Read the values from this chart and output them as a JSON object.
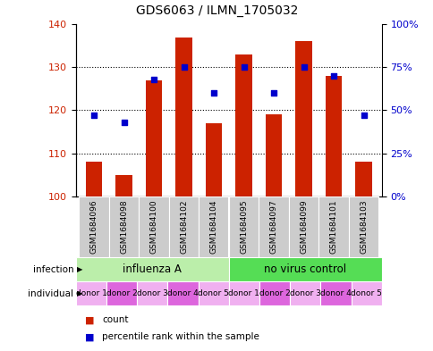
{
  "title": "GDS6063 / ILMN_1705032",
  "samples": [
    "GSM1684096",
    "GSM1684098",
    "GSM1684100",
    "GSM1684102",
    "GSM1684104",
    "GSM1684095",
    "GSM1684097",
    "GSM1684099",
    "GSM1684101",
    "GSM1684103"
  ],
  "counts": [
    108,
    105,
    127,
    137,
    117,
    133,
    119,
    136,
    128,
    108
  ],
  "percentiles": [
    47,
    43,
    68,
    75,
    60,
    75,
    60,
    75,
    70,
    47
  ],
  "ylim_left": [
    100,
    140
  ],
  "ylim_right": [
    0,
    100
  ],
  "yticks_left": [
    100,
    110,
    120,
    130,
    140
  ],
  "yticks_right": [
    0,
    25,
    50,
    75,
    100
  ],
  "ytick_labels_right": [
    "0%",
    "25%",
    "50%",
    "75%",
    "100%"
  ],
  "bar_color": "#cc2200",
  "scatter_color": "#0000cc",
  "infection_groups": [
    {
      "label": "influenza A",
      "start": 0,
      "end": 5,
      "color": "#bbeeaa"
    },
    {
      "label": "no virus control",
      "start": 5,
      "end": 10,
      "color": "#55dd55"
    }
  ],
  "individual_labels": [
    "donor 1",
    "donor 2",
    "donor 3",
    "donor 4",
    "donor 5",
    "donor 1",
    "donor 2",
    "donor 3",
    "donor 4",
    "donor 5"
  ],
  "individual_colors": [
    "#f0b0f0",
    "#dd66dd",
    "#f0b0f0",
    "#dd66dd",
    "#f0b0f0",
    "#f0b0f0",
    "#dd66dd",
    "#f0b0f0",
    "#dd66dd",
    "#f0b0f0"
  ],
  "sample_bg_color": "#cccccc",
  "legend_count_color": "#cc2200",
  "legend_pct_color": "#0000cc",
  "title_fontsize": 10,
  "tick_fontsize": 8,
  "sample_label_fontsize": 6.5,
  "group_label_fontsize": 8.5,
  "individual_label_fontsize": 6.5
}
